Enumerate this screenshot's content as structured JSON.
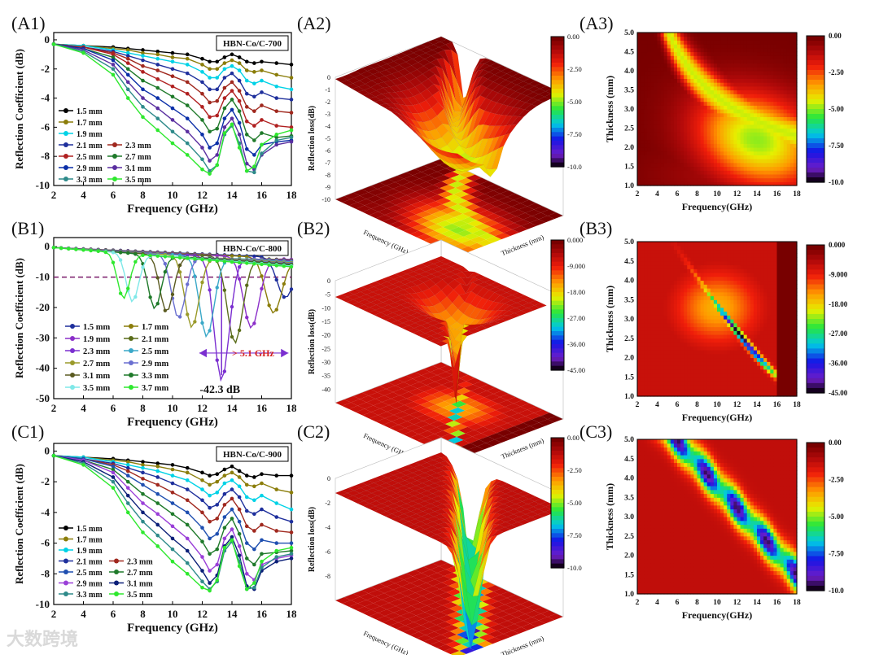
{
  "panel_labels": [
    "(A1)",
    "(A2)",
    "(A3)",
    "(B1)",
    "(B2)",
    "(B3)",
    "(C1)",
    "(C2)",
    "(C3)"
  ],
  "watermark": "大数跨境",
  "chart_data": [
    {
      "id": "A1",
      "type": "line",
      "title": "HBN-Co/C-700",
      "xlabel": "Frequency (GHz)",
      "ylabel": "Reflection Coefficient (dB)",
      "xlim": [
        2,
        18
      ],
      "ylim": [
        -10,
        0.5
      ],
      "xticks": [
        2,
        4,
        6,
        8,
        10,
        12,
        14,
        16,
        18
      ],
      "yticks": [
        0,
        -2,
        -4,
        -6,
        -8,
        -10
      ],
      "x": [
        2,
        4,
        6,
        7,
        8,
        9,
        10,
        11,
        12,
        12.5,
        13,
        13.5,
        14,
        14.5,
        15,
        15.5,
        16,
        17,
        18
      ],
      "series": [
        {
          "name": "1.5 mm",
          "color": "#000000",
          "values": [
            -0.3,
            -0.4,
            -0.5,
            -0.6,
            -0.7,
            -0.8,
            -0.9,
            -1.0,
            -1.3,
            -1.5,
            -1.5,
            -1.2,
            -1.0,
            -1.2,
            -1.5,
            -1.6,
            -1.5,
            -1.6,
            -1.7
          ]
        },
        {
          "name": "1.7 mm",
          "color": "#8b7d0a",
          "values": [
            -0.3,
            -0.4,
            -0.6,
            -0.7,
            -0.9,
            -1.0,
            -1.2,
            -1.3,
            -1.7,
            -2.0,
            -2.0,
            -1.6,
            -1.4,
            -1.6,
            -2.1,
            -2.2,
            -2.1,
            -2.4,
            -2.6
          ]
        },
        {
          "name": "1.9 mm",
          "color": "#00d2e6",
          "values": [
            -0.3,
            -0.4,
            -0.7,
            -0.9,
            -1.1,
            -1.3,
            -1.5,
            -1.7,
            -2.2,
            -2.6,
            -2.6,
            -2.0,
            -1.8,
            -2.1,
            -2.8,
            -3.0,
            -2.8,
            -3.2,
            -3.4
          ]
        },
        {
          "name": "2.1 mm",
          "color": "#1e2f9c",
          "values": [
            -0.3,
            -0.5,
            -0.8,
            -1.1,
            -1.4,
            -1.7,
            -2.0,
            -2.3,
            -2.9,
            -3.4,
            -3.4,
            -2.6,
            -2.3,
            -2.8,
            -3.7,
            -3.9,
            -3.6,
            -4.0,
            -4.1
          ]
        },
        {
          "name": "2.3 mm",
          "color": "#a0281e",
          "values": [
            -0.3,
            -0.5,
            -0.9,
            -1.3,
            -1.8,
            -2.1,
            -2.5,
            -2.9,
            -3.7,
            -4.3,
            -4.2,
            -3.3,
            -2.9,
            -3.5,
            -4.6,
            -4.9,
            -4.5,
            -4.9,
            -5.0
          ]
        },
        {
          "name": "2.5 mm",
          "color": "#b02020",
          "values": [
            -0.3,
            -0.5,
            -1.0,
            -1.6,
            -2.2,
            -2.7,
            -3.2,
            -3.7,
            -4.6,
            -5.3,
            -5.2,
            -4.0,
            -3.5,
            -4.2,
            -5.6,
            -5.9,
            -5.5,
            -5.9,
            -6.0
          ]
        },
        {
          "name": "2.7 mm",
          "color": "#1f7a2a",
          "values": [
            -0.3,
            -0.6,
            -1.2,
            -2.0,
            -2.8,
            -3.3,
            -3.9,
            -4.5,
            -5.5,
            -6.3,
            -6.1,
            -4.7,
            -4.1,
            -4.9,
            -6.5,
            -6.9,
            -6.4,
            -6.7,
            -6.6
          ]
        },
        {
          "name": "2.9 mm",
          "color": "#0b2fa8",
          "values": [
            -0.3,
            -0.6,
            -1.4,
            -2.4,
            -3.4,
            -4.0,
            -4.7,
            -5.4,
            -6.5,
            -7.4,
            -7.1,
            -5.4,
            -4.8,
            -5.7,
            -7.5,
            -7.9,
            -7.2,
            -7.0,
            -6.9
          ]
        },
        {
          "name": "3.1 mm",
          "color": "#5a2fa0",
          "values": [
            -0.3,
            -0.7,
            -1.7,
            -2.9,
            -4.0,
            -4.7,
            -5.5,
            -6.3,
            -7.4,
            -8.3,
            -7.9,
            -6.0,
            -5.4,
            -6.5,
            -8.5,
            -8.9,
            -7.9,
            -7.2,
            -7.0
          ]
        },
        {
          "name": "3.3 mm",
          "color": "#2e8a8a",
          "values": [
            -0.3,
            -0.8,
            -2.0,
            -3.4,
            -4.6,
            -5.4,
            -6.3,
            -7.1,
            -8.2,
            -9.0,
            -8.6,
            -6.5,
            -5.9,
            -7.1,
            -9.0,
            -9.1,
            -7.8,
            -6.9,
            -6.7
          ]
        },
        {
          "name": "3.5 mm",
          "color": "#2ee82e",
          "values": [
            -0.3,
            -0.9,
            -2.4,
            -4.0,
            -5.3,
            -6.2,
            -7.1,
            -7.9,
            -8.9,
            -9.2,
            -8.6,
            -6.4,
            -5.8,
            -7.4,
            -9.0,
            -8.7,
            -7.2,
            -6.5,
            -6.2
          ]
        }
      ]
    },
    {
      "id": "B1",
      "type": "line",
      "title": "HBN-Co/C-800",
      "xlabel": "Frequency (GHz)",
      "ylabel": "Reflection Coefficient (dB)",
      "xlim": [
        2,
        18
      ],
      "ylim": [
        -50,
        3
      ],
      "xticks": [
        2,
        4,
        6,
        8,
        10,
        12,
        14,
        16,
        18
      ],
      "yticks": [
        0,
        -10,
        -20,
        -30,
        -40,
        -50
      ],
      "annotations": {
        "peak_label": "-42.3 dB",
        "peak_x": 13.3,
        "peak_y": -42.3,
        "bandwidth_label": "> 5.1 GHz",
        "ref_line_y": -10
      },
      "series": [
        {
          "name": "1.5 mm",
          "color": "#1e2f9c",
          "peak_f": 17.6,
          "peak_depth": -15
        },
        {
          "name": "1.7 mm",
          "color": "#8b7d0a",
          "peak_f": 16.8,
          "peak_depth": -20
        },
        {
          "name": "1.9 mm",
          "color": "#8b2fc9",
          "peak_f": 15.3,
          "peak_depth": -25
        },
        {
          "name": "2.1 mm",
          "color": "#5a6d1a",
          "peak_f": 14.2,
          "peak_depth": -30
        },
        {
          "name": "2.3 mm",
          "color": "#7b2fd0",
          "peak_f": 13.3,
          "peak_depth": -42.3
        },
        {
          "name": "2.5 mm",
          "color": "#3aa8c8",
          "peak_f": 12.3,
          "peak_depth": -28
        },
        {
          "name": "2.7 mm",
          "color": "#9a9a2a",
          "peak_f": 11.3,
          "peak_depth": -25
        },
        {
          "name": "2.9 mm",
          "color": "#6a6fd0",
          "peak_f": 10.4,
          "peak_depth": -22
        },
        {
          "name": "3.1 mm",
          "color": "#5a5a20",
          "peak_f": 9.6,
          "peak_depth": -20
        },
        {
          "name": "3.3 mm",
          "color": "#1f7a2a",
          "peak_f": 8.8,
          "peak_depth": -19
        },
        {
          "name": "3.5 mm",
          "color": "#7fe8e8",
          "peak_f": 7.3,
          "peak_depth": -17
        },
        {
          "name": "3.7 mm",
          "color": "#2ee82e",
          "peak_f": 6.7,
          "peak_depth": -16
        }
      ]
    },
    {
      "id": "C1",
      "type": "line",
      "title": "HBN-Co/C-900",
      "xlabel": "Frequency (GHz)",
      "ylabel": "Reflection Coefficient (dB)",
      "xlim": [
        2,
        18
      ],
      "ylim": [
        -10,
        0.5
      ],
      "xticks": [
        2,
        4,
        6,
        8,
        10,
        12,
        14,
        16,
        18
      ],
      "yticks": [
        0,
        -2,
        -4,
        -6,
        -8,
        -10
      ],
      "x": [
        2,
        4,
        6,
        7,
        8,
        9,
        10,
        11,
        12,
        12.5,
        13,
        13.5,
        14,
        14.5,
        15,
        15.5,
        16,
        17,
        18
      ],
      "series": [
        {
          "name": "1.5 mm",
          "color": "#000000",
          "values": [
            -0.3,
            -0.4,
            -0.5,
            -0.6,
            -0.7,
            -0.8,
            -0.9,
            -1.1,
            -1.4,
            -1.6,
            -1.5,
            -1.2,
            -1.0,
            -1.3,
            -1.6,
            -1.7,
            -1.5,
            -1.6,
            -1.6
          ]
        },
        {
          "name": "1.7 mm",
          "color": "#8b7d0a",
          "values": [
            -0.3,
            -0.4,
            -0.6,
            -0.7,
            -0.9,
            -1.0,
            -1.2,
            -1.4,
            -1.9,
            -2.2,
            -2.0,
            -1.6,
            -1.4,
            -1.7,
            -2.2,
            -2.3,
            -2.1,
            -2.5,
            -2.7
          ]
        },
        {
          "name": "1.9 mm",
          "color": "#00d2e6",
          "values": [
            -0.3,
            -0.4,
            -0.7,
            -0.9,
            -1.1,
            -1.3,
            -1.6,
            -1.9,
            -2.5,
            -2.9,
            -2.7,
            -2.1,
            -1.9,
            -2.3,
            -3.0,
            -3.2,
            -2.9,
            -3.4,
            -3.8
          ]
        },
        {
          "name": "2.1 mm",
          "color": "#1e2f9c",
          "values": [
            -0.3,
            -0.5,
            -0.8,
            -1.1,
            -1.4,
            -1.7,
            -2.1,
            -2.5,
            -3.2,
            -3.7,
            -3.5,
            -2.8,
            -2.5,
            -3.0,
            -3.9,
            -4.1,
            -3.8,
            -4.3,
            -4.6
          ]
        },
        {
          "name": "2.3 mm",
          "color": "#a0281e",
          "values": [
            -0.3,
            -0.5,
            -0.9,
            -1.3,
            -1.8,
            -2.2,
            -2.7,
            -3.2,
            -4.0,
            -4.6,
            -4.4,
            -3.5,
            -3.1,
            -3.8,
            -4.9,
            -5.2,
            -4.8,
            -5.2,
            -5.3
          ]
        },
        {
          "name": "2.5 mm",
          "color": "#1f4fb0",
          "values": [
            -0.3,
            -0.5,
            -1.0,
            -1.6,
            -2.2,
            -2.8,
            -3.4,
            -4.0,
            -5.0,
            -5.7,
            -5.4,
            -4.3,
            -3.8,
            -4.6,
            -6.0,
            -6.4,
            -5.8,
            -6.0,
            -6.0
          ]
        },
        {
          "name": "2.7 mm",
          "color": "#1f7a2a",
          "values": [
            -0.3,
            -0.6,
            -1.2,
            -2.0,
            -2.8,
            -3.4,
            -4.1,
            -4.8,
            -5.9,
            -6.7,
            -6.4,
            -5.0,
            -4.4,
            -5.4,
            -7.0,
            -7.4,
            -6.7,
            -6.6,
            -6.5
          ]
        },
        {
          "name": "2.9 mm",
          "color": "#9a3fd8",
          "values": [
            -0.3,
            -0.6,
            -1.4,
            -2.4,
            -3.4,
            -4.1,
            -4.9,
            -5.7,
            -6.9,
            -7.8,
            -7.4,
            -5.7,
            -5.1,
            -6.2,
            -8.0,
            -8.4,
            -7.4,
            -7.0,
            -6.8
          ]
        },
        {
          "name": "3.1 mm",
          "color": "#0b1f78",
          "values": [
            -0.3,
            -0.7,
            -1.7,
            -2.9,
            -4.0,
            -4.8,
            -5.7,
            -6.5,
            -7.8,
            -8.6,
            -8.1,
            -6.2,
            -5.6,
            -6.8,
            -8.8,
            -9.0,
            -7.8,
            -7.2,
            -7.0
          ]
        },
        {
          "name": "3.3 mm",
          "color": "#2e8a8a",
          "values": [
            -0.3,
            -0.8,
            -2.0,
            -3.4,
            -4.6,
            -5.5,
            -6.4,
            -7.3,
            -8.5,
            -9.0,
            -8.5,
            -6.5,
            -5.9,
            -7.2,
            -9.0,
            -8.9,
            -7.6,
            -6.9,
            -6.7
          ]
        },
        {
          "name": "3.5 mm",
          "color": "#2ee82e",
          "values": [
            -0.3,
            -0.9,
            -2.4,
            -4.0,
            -5.3,
            -6.2,
            -7.2,
            -8.0,
            -8.9,
            -9.1,
            -8.4,
            -6.3,
            -5.8,
            -7.5,
            -9.0,
            -8.6,
            -7.2,
            -6.5,
            -6.3
          ]
        }
      ]
    },
    {
      "id": "A2",
      "type": "surface",
      "zlabel": "Reflection loss(dB)",
      "xlabel": "Frequency (GHz)",
      "ylabel": "Thickness (mm)",
      "zticks": [
        "0",
        "-1",
        "-2",
        "-3",
        "-4",
        "-5",
        "-6",
        "-7",
        "-8",
        "-9",
        "-10"
      ],
      "colorbar": [
        "0.00",
        "-2.50",
        "-5.00",
        "-7.50",
        "-10.0"
      ]
    },
    {
      "id": "B2",
      "type": "surface",
      "zlabel": "Reflection loss(dB)",
      "xlabel": "Frequency (GHz)",
      "ylabel": "Thickness (mm)",
      "zticks": [
        "0",
        "-5",
        "-10",
        "-15",
        "-20",
        "-25",
        "-30",
        "-35",
        "-40"
      ],
      "colorbar": [
        "0.000",
        "-9.000",
        "-18.00",
        "-27.00",
        "-36.00",
        "-45.00"
      ]
    },
    {
      "id": "C2",
      "type": "surface",
      "zlabel": "Reflection loss(dB)",
      "xlabel": "Frequency (GHz)",
      "ylabel": "Thickness (mm)",
      "zticks": [
        "0",
        "-2",
        "-4",
        "-6",
        "-8"
      ],
      "colorbar": [
        "0.00",
        "-2.50",
        "-5.00",
        "-7.50",
        "-10.0"
      ]
    },
    {
      "id": "A3",
      "type": "heatmap",
      "xlabel": "Frequency(GHz)",
      "ylabel": "Thickness (mm)",
      "xticks": [
        2,
        4,
        6,
        8,
        10,
        12,
        14,
        16,
        18
      ],
      "yticks": [
        "1.0",
        "1.5",
        "2.0",
        "2.5",
        "3.0",
        "3.5",
        "4.0",
        "4.5",
        "5.0"
      ],
      "colorbar": [
        "0.00",
        "-2.50",
        "-5.00",
        "-7.50",
        "-10.0"
      ]
    },
    {
      "id": "B3",
      "type": "heatmap",
      "xlabel": "Frequency(GHz)",
      "ylabel": "Thickness (mm)",
      "xticks": [
        2,
        4,
        6,
        8,
        10,
        12,
        14,
        16,
        18
      ],
      "yticks": [
        "1.0",
        "1.5",
        "2.0",
        "2.5",
        "3.0",
        "3.5",
        "4.0",
        "4.5",
        "5.0"
      ],
      "colorbar": [
        "0.000",
        "-9.000",
        "-18.00",
        "-27.00",
        "-36.00",
        "-45.00"
      ]
    },
    {
      "id": "C3",
      "type": "heatmap",
      "xlabel": "Frequency(GHz)",
      "ylabel": "Thickness (mm)",
      "xticks": [
        2,
        4,
        6,
        8,
        10,
        12,
        14,
        16,
        18
      ],
      "yticks": [
        "1.0",
        "1.5",
        "2.0",
        "2.5",
        "3.0",
        "3.5",
        "4.0",
        "4.5",
        "5.0"
      ],
      "colorbar": [
        "0.00",
        "-2.50",
        "-5.00",
        "-7.50",
        "-10.0"
      ]
    }
  ]
}
